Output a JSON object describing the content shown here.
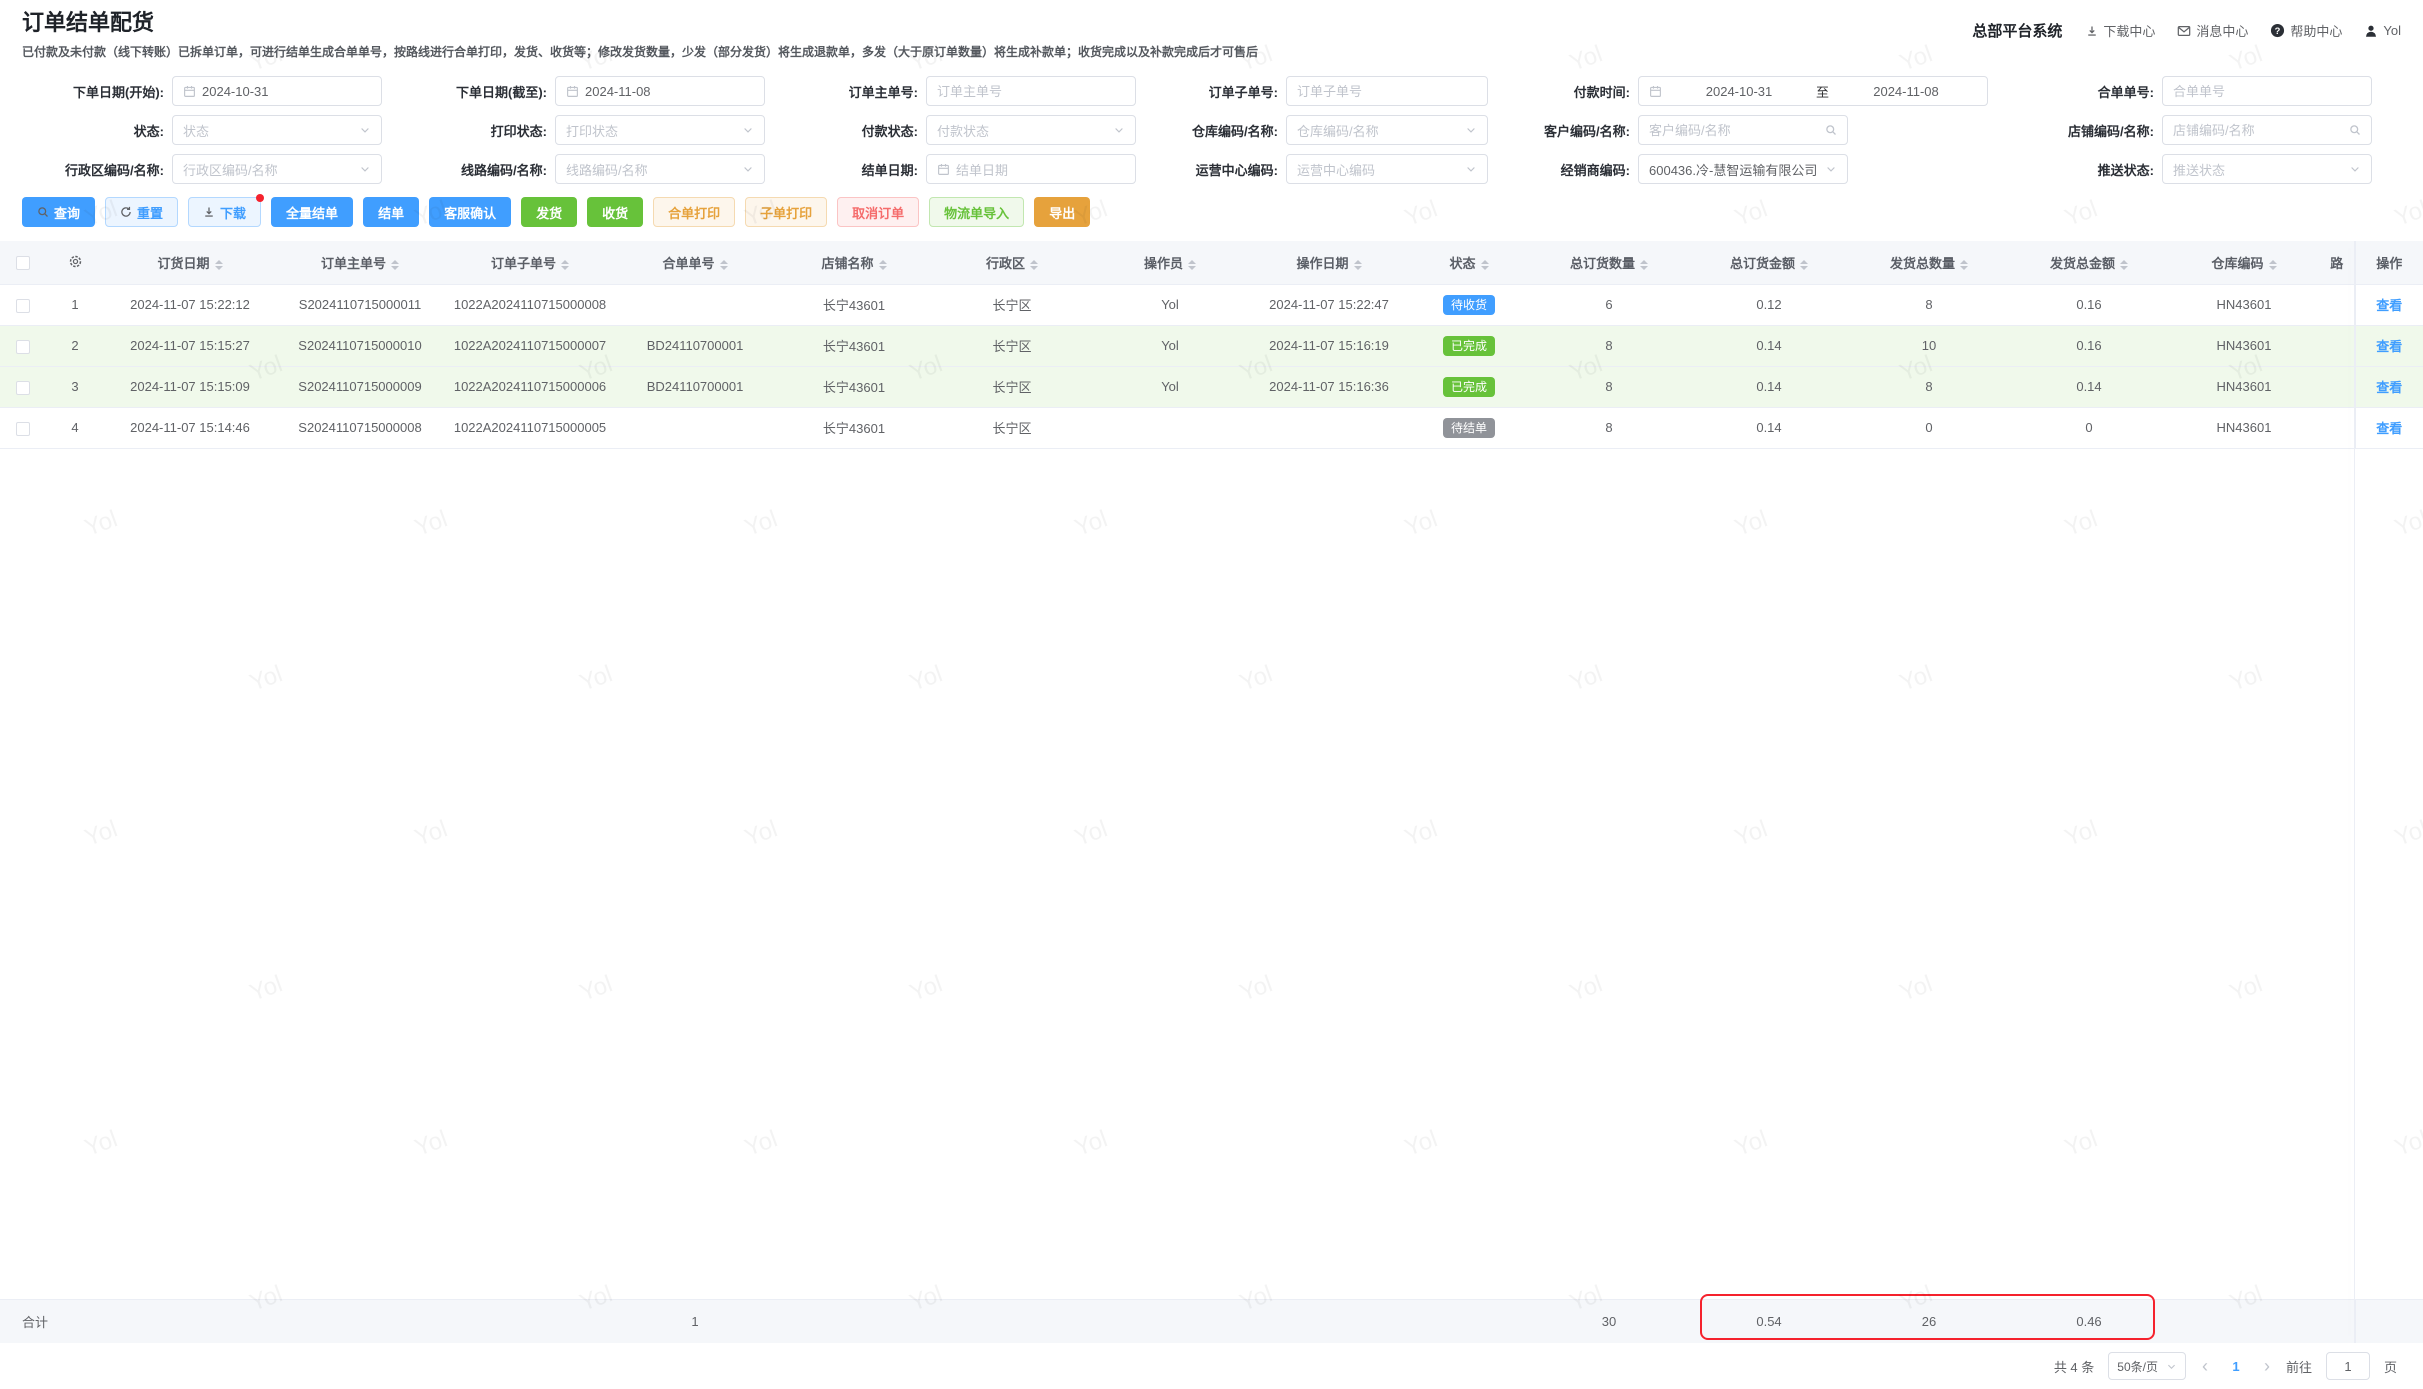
{
  "header": {
    "title": "订单结单配货",
    "subtitle": "已付款及未付款（线下转账）已拆单订单，可进行结单生成合单单号，按路线进行合单打印，发货、收货等；修改发货数量，少发（部分发货）将生成退款单，多发（大于原订单数量）将生成补款单；收货完成以及补款完成后才可售后",
    "brand": "总部平台系统",
    "nav_items": [
      {
        "slug": "download-center",
        "icon": "download-icon",
        "label": "下载中心"
      },
      {
        "slug": "message-center",
        "icon": "message-icon",
        "label": "消息中心"
      },
      {
        "slug": "help-center",
        "icon": "help-icon",
        "label": "帮助中心"
      },
      {
        "slug": "user",
        "icon": "user-icon",
        "label": "Yol"
      }
    ]
  },
  "filters": {
    "rows": [
      [
        {
          "slug": "order-date-start",
          "label": "下单日期(开始):",
          "type": "date",
          "value": "2024-10-31",
          "icon": "calendar-icon"
        },
        {
          "slug": "order-date-end",
          "label": "下单日期(截至):",
          "type": "date",
          "value": "2024-11-08",
          "icon": "calendar-icon"
        },
        {
          "slug": "main-order-no",
          "label": "订单主单号:",
          "type": "text",
          "placeholder": "订单主单号"
        },
        {
          "slug": "sub-order-no",
          "label": "订单子单号:",
          "type": "text",
          "placeholder": "订单子单号"
        },
        {
          "slug": "pay-time",
          "label": "付款时间:",
          "type": "daterange",
          "start": "2024-10-31",
          "separator": "至",
          "end": "2024-11-08",
          "icon": "calendar-icon"
        },
        {
          "slug": "merge-order-no",
          "label": "合单单号:",
          "type": "text",
          "placeholder": "合单单号"
        }
      ],
      [
        {
          "slug": "status",
          "label": "状态:",
          "type": "select",
          "placeholder": "状态"
        },
        {
          "slug": "print-status",
          "label": "打印状态:",
          "type": "select",
          "placeholder": "打印状态"
        },
        {
          "slug": "pay-status",
          "label": "付款状态:",
          "type": "select",
          "placeholder": "付款状态"
        },
        {
          "slug": "warehouse",
          "label": "仓库编码/名称:",
          "type": "select",
          "placeholder": "仓库编码/名称"
        },
        {
          "slug": "customer",
          "label": "客户编码/名称:",
          "type": "search",
          "placeholder": "客户编码/名称",
          "icon": "search-icon"
        },
        {
          "slug": "store",
          "label": "店铺编码/名称:",
          "type": "search",
          "placeholder": "店铺编码/名称",
          "icon": "search-icon"
        }
      ],
      [
        {
          "slug": "district",
          "label": "行政区编码/名称:",
          "type": "select",
          "placeholder": "行政区编码/名称"
        },
        {
          "slug": "route",
          "label": "线路编码/名称:",
          "type": "select",
          "placeholder": "线路编码/名称"
        },
        {
          "slug": "settle-date",
          "label": "结单日期:",
          "type": "date",
          "placeholder": "结单日期",
          "icon": "calendar-icon"
        },
        {
          "slug": "operation-center",
          "label": "运营中心编码:",
          "type": "select",
          "placeholder": "运营中心编码"
        },
        {
          "slug": "dealer",
          "label": "经销商编码:",
          "type": "select",
          "value": "600436.冷-慧智运输有限公司"
        },
        {
          "slug": "push-status",
          "label": "推送状态:",
          "type": "select",
          "placeholder": "推送状态"
        }
      ]
    ]
  },
  "toolbar": {
    "buttons": [
      {
        "slug": "query",
        "label": "查询",
        "style": "primary",
        "icon": "search-icon"
      },
      {
        "slug": "reset",
        "label": "重置",
        "style": "plain-primary",
        "icon": "refresh-icon"
      },
      {
        "slug": "download",
        "label": "下载",
        "style": "plain-primary",
        "icon": "download-icon",
        "badge_dot": true
      },
      {
        "slug": "settle-all",
        "label": "全量结单",
        "style": "primary"
      },
      {
        "slug": "settle",
        "label": "结单",
        "style": "primary"
      },
      {
        "slug": "service-confirm",
        "label": "客服确认",
        "style": "primary"
      },
      {
        "slug": "ship",
        "label": "发货",
        "style": "success"
      },
      {
        "slug": "receive",
        "label": "收货",
        "style": "success"
      },
      {
        "slug": "merge-print",
        "label": "合单打印",
        "style": "plain-warning"
      },
      {
        "slug": "sub-print",
        "label": "子单打印",
        "style": "plain-warning"
      },
      {
        "slug": "cancel-order",
        "label": "取消订单",
        "style": "plain-danger"
      },
      {
        "slug": "logistics-import",
        "label": "物流单导入",
        "style": "plain-success"
      },
      {
        "slug": "export",
        "label": "导出",
        "style": "warning"
      }
    ]
  },
  "table": {
    "columns": [
      {
        "key": "order_date",
        "label": "订货日期",
        "sortable": true
      },
      {
        "key": "main_order_no",
        "label": "订单主单号",
        "sortable": true
      },
      {
        "key": "sub_order_no",
        "label": "订单子单号",
        "sortable": true
      },
      {
        "key": "merge_order_no",
        "label": "合单单号",
        "sortable": true
      },
      {
        "key": "store_name",
        "label": "店铺名称",
        "sortable": true
      },
      {
        "key": "district",
        "label": "行政区",
        "sortable": true
      },
      {
        "key": "operator",
        "label": "操作员",
        "sortable": true
      },
      {
        "key": "op_date",
        "label": "操作日期",
        "sortable": true
      },
      {
        "key": "status",
        "label": "状态",
        "sortable": true
      },
      {
        "key": "total_qty",
        "label": "总订货数量",
        "sortable": true
      },
      {
        "key": "total_amount",
        "label": "总订货金额",
        "sortable": true
      },
      {
        "key": "ship_qty",
        "label": "发货总数量",
        "sortable": true
      },
      {
        "key": "ship_amount",
        "label": "发货总金额",
        "sortable": true
      },
      {
        "key": "warehouse_code",
        "label": "仓库编码",
        "sortable": true
      },
      {
        "key": "route_clipped",
        "label": "路",
        "sortable": false
      },
      {
        "key": "action",
        "label": "操作",
        "sortable": false
      }
    ],
    "action_label": "查看",
    "rows": [
      {
        "index": "1",
        "order_date": "2024-11-07 15:22:12",
        "main_order_no": "S2024110715000011",
        "sub_order_no": "1022A2024110715000008",
        "merge_order_no": "",
        "store_name": "长宁43601",
        "district": "长宁区",
        "operator": "Yol",
        "op_date": "2024-11-07 15:22:47",
        "status": {
          "label": "待收货",
          "type": "primary"
        },
        "total_qty": "6",
        "total_amount": "0.12",
        "ship_qty": "8",
        "ship_qty_red": true,
        "ship_amount": "0.16",
        "warehouse_code": "HN43601",
        "highlight": false
      },
      {
        "index": "2",
        "order_date": "2024-11-07 15:15:27",
        "main_order_no": "S2024110715000010",
        "sub_order_no": "1022A2024110715000007",
        "merge_order_no": "BD24110700001",
        "store_name": "长宁43601",
        "district": "长宁区",
        "operator": "Yol",
        "op_date": "2024-11-07 15:16:19",
        "status": {
          "label": "已完成",
          "type": "success"
        },
        "total_qty": "8",
        "total_amount": "0.14",
        "ship_qty": "10",
        "ship_qty_red": true,
        "ship_amount": "0.16",
        "warehouse_code": "HN43601",
        "highlight": true
      },
      {
        "index": "3",
        "order_date": "2024-11-07 15:15:09",
        "main_order_no": "S2024110715000009",
        "sub_order_no": "1022A2024110715000006",
        "merge_order_no": "BD24110700001",
        "store_name": "长宁43601",
        "district": "长宁区",
        "operator": "Yol",
        "op_date": "2024-11-07 15:16:36",
        "status": {
          "label": "已完成",
          "type": "success"
        },
        "total_qty": "8",
        "total_amount": "0.14",
        "ship_qty": "8",
        "ship_qty_red": false,
        "ship_amount": "0.14",
        "warehouse_code": "HN43601",
        "highlight": true
      },
      {
        "index": "4",
        "order_date": "2024-11-07 15:14:46",
        "main_order_no": "S2024110715000008",
        "sub_order_no": "1022A2024110715000005",
        "merge_order_no": "",
        "store_name": "长宁43601",
        "district": "长宁区",
        "operator": "",
        "op_date": "",
        "status": {
          "label": "待结单",
          "type": "info"
        },
        "total_qty": "8",
        "total_amount": "0.14",
        "ship_qty": "0",
        "ship_qty_red": true,
        "ship_amount": "0",
        "warehouse_code": "HN43601",
        "highlight": false
      }
    ]
  },
  "totals": {
    "label": "合计",
    "merge_count": "1",
    "total_qty": "30",
    "total_amount": "0.54",
    "ship_qty": "26",
    "ship_amount": "0.46"
  },
  "pagination": {
    "total_text": "共 4 条",
    "page_size": "50条/页",
    "prev": "‹",
    "current_page": "1",
    "next": "›",
    "goto_label": "前往",
    "goto_value": "1",
    "goto_unit": "页"
  },
  "watermark_text": "Yol",
  "colors": {
    "primary": "#409eff",
    "success": "#67c23a",
    "warning": "#e6a23c",
    "danger": "#f56c6c",
    "info": "#909399",
    "highlight_row": "#f0f9eb",
    "annotation_red": "#f5222d"
  }
}
